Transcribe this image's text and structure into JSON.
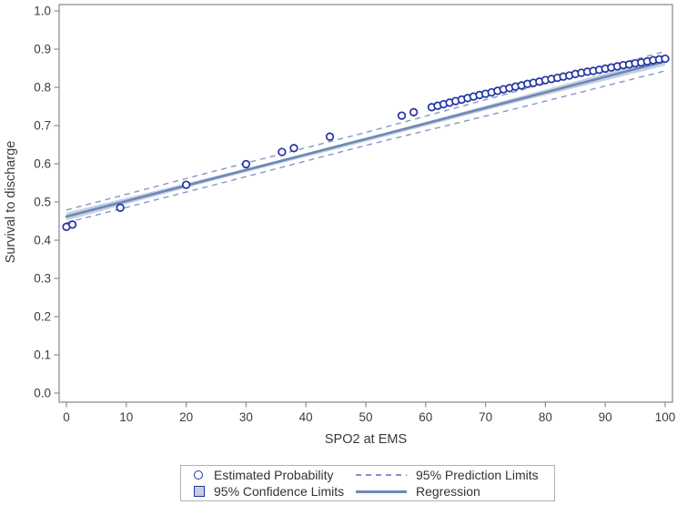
{
  "colors": {
    "marker": "#2334a3",
    "regression": "#6d87b5",
    "confidence_band": "#c4cfe2",
    "prediction": "#8595cb",
    "frame": "#8e8e8e",
    "tick_text": "#3c3c3c",
    "axis_title_text": "#3a3a3a",
    "legend_border": "#b3b3b3",
    "legend_text": "#333333"
  },
  "legend": {
    "items": [
      {
        "label": "Estimated Probability",
        "marker": "open-circle"
      },
      {
        "label": "95% Prediction Limits",
        "marker": "dashed-line"
      },
      {
        "label": "95% Confidence Limits",
        "marker": "filled-square"
      },
      {
        "label": "Regression",
        "marker": "solid-line"
      }
    ]
  },
  "chart_data": {
    "type": "scatter",
    "title": "",
    "xlabel": "SPO2 at EMS",
    "ylabel": "Survival to discharge",
    "xlim": [
      0,
      100
    ],
    "ylim": [
      0.0,
      1.0
    ],
    "xticks": [
      0,
      10,
      20,
      30,
      40,
      50,
      60,
      70,
      80,
      90,
      100
    ],
    "yticks": [
      0.0,
      0.1,
      0.2,
      0.3,
      0.4,
      0.5,
      0.6,
      0.7,
      0.8,
      0.9,
      1.0
    ],
    "grid": false,
    "legend_position": "bottom",
    "series": [
      {
        "name": "Estimated Probability",
        "role": "points",
        "points": [
          [
            0,
            0.435
          ],
          [
            1,
            0.441
          ],
          [
            9,
            0.485
          ],
          [
            20,
            0.545
          ],
          [
            30,
            0.599
          ],
          [
            36,
            0.631
          ],
          [
            38,
            0.641
          ],
          [
            44,
            0.671
          ],
          [
            56,
            0.726
          ],
          [
            58,
            0.735
          ],
          [
            61,
            0.748
          ],
          [
            62,
            0.752
          ],
          [
            63,
            0.756
          ],
          [
            64,
            0.76
          ],
          [
            65,
            0.764
          ],
          [
            66,
            0.768
          ],
          [
            67,
            0.772
          ],
          [
            68,
            0.776
          ],
          [
            69,
            0.78
          ],
          [
            70,
            0.783
          ],
          [
            71,
            0.787
          ],
          [
            72,
            0.791
          ],
          [
            73,
            0.795
          ],
          [
            74,
            0.798
          ],
          [
            75,
            0.802
          ],
          [
            76,
            0.805
          ],
          [
            77,
            0.809
          ],
          [
            78,
            0.812
          ],
          [
            79,
            0.815
          ],
          [
            80,
            0.819
          ],
          [
            81,
            0.822
          ],
          [
            82,
            0.825
          ],
          [
            83,
            0.828
          ],
          [
            84,
            0.831
          ],
          [
            85,
            0.835
          ],
          [
            86,
            0.838
          ],
          [
            87,
            0.841
          ],
          [
            88,
            0.843
          ],
          [
            89,
            0.846
          ],
          [
            90,
            0.849
          ],
          [
            91,
            0.852
          ],
          [
            92,
            0.855
          ],
          [
            93,
            0.858
          ],
          [
            94,
            0.86
          ],
          [
            95,
            0.863
          ],
          [
            96,
            0.865
          ],
          [
            97,
            0.868
          ],
          [
            98,
            0.871
          ],
          [
            99,
            0.873
          ],
          [
            100,
            0.875
          ]
        ]
      },
      {
        "name": "Regression",
        "role": "regression",
        "points": [
          [
            0,
            0.462
          ],
          [
            50,
            0.665
          ],
          [
            100,
            0.868
          ]
        ]
      },
      {
        "name": "95% Prediction Limits",
        "role": "prediction",
        "upper": [
          [
            0,
            0.479
          ],
          [
            25,
            0.582
          ],
          [
            50,
            0.682
          ],
          [
            75,
            0.789
          ],
          [
            100,
            0.894
          ]
        ],
        "lower": [
          [
            0,
            0.446
          ],
          [
            25,
            0.546
          ],
          [
            50,
            0.648
          ],
          [
            75,
            0.744
          ],
          [
            100,
            0.843
          ]
        ]
      },
      {
        "name": "95% Confidence Limits",
        "role": "confidence",
        "upper": [
          [
            0,
            0.472
          ],
          [
            25,
            0.568
          ],
          [
            50,
            0.667
          ],
          [
            75,
            0.773
          ],
          [
            100,
            0.879
          ]
        ],
        "lower": [
          [
            0,
            0.452
          ],
          [
            25,
            0.558
          ],
          [
            50,
            0.658
          ],
          [
            75,
            0.76
          ],
          [
            100,
            0.857
          ]
        ]
      }
    ]
  }
}
